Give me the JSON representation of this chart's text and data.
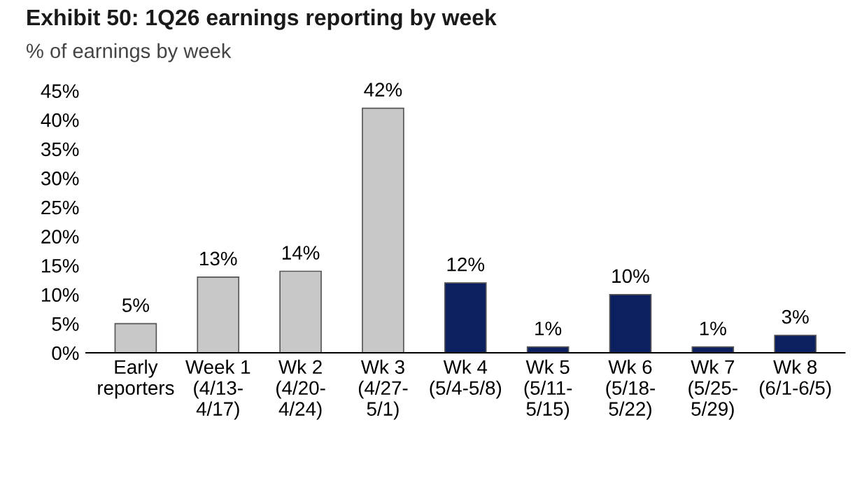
{
  "chart_data": {
    "type": "bar",
    "title": "Exhibit 50: 1Q26 earnings reporting by week",
    "subtitle": "% of earnings by week",
    "categories": [
      "Early\nreporters",
      "Week 1\n(4/13-\n4/17)",
      "Wk 2\n(4/20-\n4/24)",
      "Wk 3\n(4/27-\n5/1)",
      "Wk 4\n(5/4-5/8)",
      "Wk 5\n(5/11-\n5/15)",
      "Wk 6\n(5/18-\n5/22)",
      "Wk 7\n(5/25-\n5/29)",
      "Wk 8\n(6/1-6/5)"
    ],
    "values": [
      5,
      13,
      14,
      42,
      12,
      1,
      10,
      1,
      3
    ],
    "value_labels": [
      "5%",
      "13%",
      "14%",
      "42%",
      "12%",
      "1%",
      "10%",
      "1%",
      "3%"
    ],
    "colors": [
      "#c8c8c8",
      "#c8c8c8",
      "#c8c8c8",
      "#c8c8c8",
      "#0c1f5e",
      "#0c1f5e",
      "#0c1f5e",
      "#0c1f5e",
      "#0c1f5e"
    ],
    "ylim": [
      0,
      45
    ],
    "yticks": [
      {
        "value": 0,
        "label": "0%"
      },
      {
        "value": 5,
        "label": "5%"
      },
      {
        "value": 10,
        "label": "10%"
      },
      {
        "value": 15,
        "label": "15%"
      },
      {
        "value": 20,
        "label": "20%"
      },
      {
        "value": 25,
        "label": "25%"
      },
      {
        "value": 30,
        "label": "30%"
      },
      {
        "value": 35,
        "label": "35%"
      },
      {
        "value": 40,
        "label": "40%"
      },
      {
        "value": 45,
        "label": "45%"
      }
    ],
    "grid": false,
    "legend": false
  }
}
